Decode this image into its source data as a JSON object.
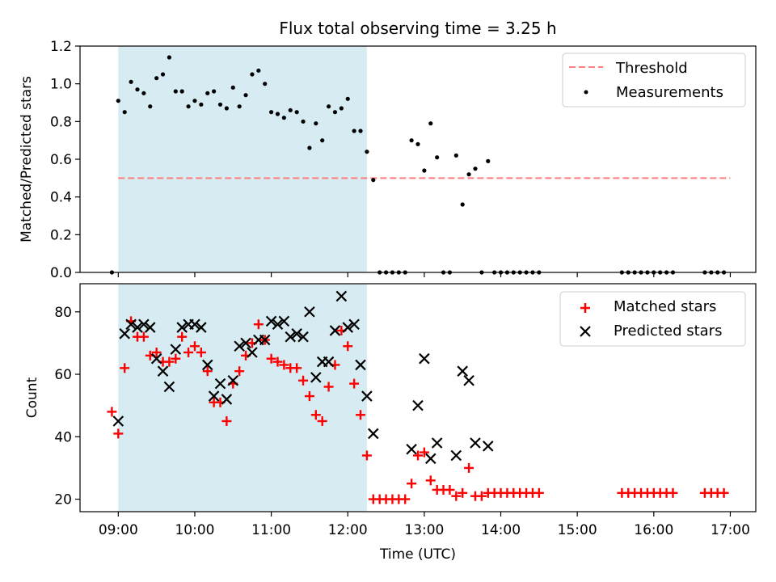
{
  "figure": {
    "title": "Flux total observing time = 3.25 h"
  },
  "colors": {
    "span_fill": "#add8e6",
    "threshold": "#ff7f7f",
    "measurements": "#000000",
    "matched": "#ff0000",
    "predicted": "#000000",
    "axes": "#000000"
  },
  "chart_data": [
    {
      "type": "scatter",
      "panel": "top",
      "title": "Flux total observing time = 3.25 h",
      "xlabel": "",
      "ylabel": "Matched/Predicted stars",
      "xlim": [
        "08:30",
        "17:20"
      ],
      "ylim": [
        0,
        1.2
      ],
      "yticks": [
        "0.0",
        "0.2",
        "0.4",
        "0.6",
        "0.8",
        "1.0",
        "1.2"
      ],
      "x_tick_values": [
        "09:00",
        "10:00",
        "11:00",
        "12:00",
        "13:00",
        "14:00",
        "15:00",
        "16:00",
        "17:00"
      ],
      "shaded_span": [
        "09:00",
        "12:15"
      ],
      "legend": {
        "position": "top-right",
        "entries": [
          "Threshold",
          "Measurements"
        ]
      },
      "grid": false,
      "threshold": {
        "name": "Threshold",
        "value": 0.5,
        "x_range": [
          "09:00",
          "17:00"
        ],
        "style": "dashed"
      },
      "series": [
        {
          "name": "Measurements",
          "marker": "dot",
          "points": [
            [
              "08:55",
              0.0
            ],
            [
              "09:00",
              0.91
            ],
            [
              "09:05",
              0.85
            ],
            [
              "09:10",
              1.01
            ],
            [
              "09:15",
              0.97
            ],
            [
              "09:20",
              0.95
            ],
            [
              "09:25",
              0.88
            ],
            [
              "09:30",
              1.03
            ],
            [
              "09:35",
              1.05
            ],
            [
              "09:40",
              1.14
            ],
            [
              "09:45",
              0.96
            ],
            [
              "09:50",
              0.96
            ],
            [
              "09:55",
              0.88
            ],
            [
              "10:00",
              0.91
            ],
            [
              "10:05",
              0.89
            ],
            [
              "10:10",
              0.95
            ],
            [
              "10:15",
              0.96
            ],
            [
              "10:20",
              0.89
            ],
            [
              "10:25",
              0.87
            ],
            [
              "10:30",
              0.98
            ],
            [
              "10:35",
              0.88
            ],
            [
              "10:40",
              0.94
            ],
            [
              "10:45",
              1.05
            ],
            [
              "10:50",
              1.07
            ],
            [
              "10:55",
              1.0
            ],
            [
              "11:00",
              0.85
            ],
            [
              "11:05",
              0.84
            ],
            [
              "11:10",
              0.82
            ],
            [
              "11:15",
              0.86
            ],
            [
              "11:20",
              0.85
            ],
            [
              "11:25",
              0.8
            ],
            [
              "11:30",
              0.66
            ],
            [
              "11:35",
              0.79
            ],
            [
              "11:40",
              0.7
            ],
            [
              "11:45",
              0.88
            ],
            [
              "11:50",
              0.85
            ],
            [
              "11:55",
              0.87
            ],
            [
              "12:00",
              0.92
            ],
            [
              "12:05",
              0.75
            ],
            [
              "12:10",
              0.75
            ],
            [
              "12:15",
              0.64
            ],
            [
              "12:20",
              0.49
            ],
            [
              "12:25",
              0.0
            ],
            [
              "12:30",
              0.0
            ],
            [
              "12:35",
              0.0
            ],
            [
              "12:40",
              0.0
            ],
            [
              "12:45",
              0.0
            ],
            [
              "12:50",
              0.7
            ],
            [
              "12:55",
              0.68
            ],
            [
              "13:00",
              0.54
            ],
            [
              "13:05",
              0.79
            ],
            [
              "13:10",
              0.61
            ],
            [
              "13:15",
              0.0
            ],
            [
              "13:20",
              0.0
            ],
            [
              "13:25",
              0.62
            ],
            [
              "13:30",
              0.36
            ],
            [
              "13:35",
              0.52
            ],
            [
              "13:40",
              0.55
            ],
            [
              "13:45",
              0.0
            ],
            [
              "13:50",
              0.59
            ],
            [
              "13:55",
              0.0
            ],
            [
              "14:00",
              0.0
            ],
            [
              "14:05",
              0.0
            ],
            [
              "14:10",
              0.0
            ],
            [
              "14:15",
              0.0
            ],
            [
              "14:20",
              0.0
            ],
            [
              "14:25",
              0.0
            ],
            [
              "14:30",
              0.0
            ],
            [
              "15:35",
              0.0
            ],
            [
              "15:40",
              0.0
            ],
            [
              "15:45",
              0.0
            ],
            [
              "15:50",
              0.0
            ],
            [
              "15:55",
              0.0
            ],
            [
              "16:00",
              0.0
            ],
            [
              "16:05",
              0.0
            ],
            [
              "16:10",
              0.0
            ],
            [
              "16:15",
              0.0
            ],
            [
              "16:40",
              0.0
            ],
            [
              "16:45",
              0.0
            ],
            [
              "16:50",
              0.0
            ],
            [
              "16:55",
              0.0
            ]
          ]
        }
      ]
    },
    {
      "type": "scatter",
      "panel": "bottom",
      "title": "",
      "xlabel": "Time (UTC)",
      "ylabel": "Count",
      "xlim": [
        "08:30",
        "17:20"
      ],
      "ylim": [
        16,
        89
      ],
      "yticks": [
        "20",
        "40",
        "60",
        "80"
      ],
      "xticks": [
        "09:00",
        "10:00",
        "11:00",
        "12:00",
        "13:00",
        "14:00",
        "15:00",
        "16:00",
        "17:00"
      ],
      "shaded_span": [
        "09:00",
        "12:15"
      ],
      "legend": {
        "position": "top-right",
        "entries": [
          "Matched stars",
          "Predicted stars"
        ]
      },
      "grid": false,
      "series": [
        {
          "name": "Matched stars",
          "marker": "plus",
          "points": [
            [
              "08:55",
              48
            ],
            [
              "09:00",
              41
            ],
            [
              "09:05",
              62
            ],
            [
              "09:10",
              77
            ],
            [
              "09:15",
              72
            ],
            [
              "09:20",
              72
            ],
            [
              "09:25",
              66
            ],
            [
              "09:30",
              67
            ],
            [
              "09:35",
              64
            ],
            [
              "09:40",
              64
            ],
            [
              "09:45",
              65
            ],
            [
              "09:50",
              72
            ],
            [
              "09:55",
              67
            ],
            [
              "10:00",
              69
            ],
            [
              "10:05",
              67
            ],
            [
              "10:10",
              61
            ],
            [
              "10:15",
              51
            ],
            [
              "10:20",
              51
            ],
            [
              "10:25",
              45
            ],
            [
              "10:30",
              57
            ],
            [
              "10:35",
              61
            ],
            [
              "10:40",
              66
            ],
            [
              "10:45",
              70
            ],
            [
              "10:50",
              76
            ],
            [
              "10:55",
              71
            ],
            [
              "11:00",
              65
            ],
            [
              "11:05",
              64
            ],
            [
              "11:10",
              63
            ],
            [
              "11:15",
              62
            ],
            [
              "11:20",
              62
            ],
            [
              "11:25",
              58
            ],
            [
              "11:30",
              53
            ],
            [
              "11:35",
              47
            ],
            [
              "11:40",
              45
            ],
            [
              "11:45",
              56
            ],
            [
              "11:50",
              63
            ],
            [
              "11:55",
              74
            ],
            [
              "12:00",
              69
            ],
            [
              "12:05",
              57
            ],
            [
              "12:10",
              47
            ],
            [
              "12:15",
              34
            ],
            [
              "12:20",
              20
            ],
            [
              "12:25",
              20
            ],
            [
              "12:30",
              20
            ],
            [
              "12:35",
              20
            ],
            [
              "12:40",
              20
            ],
            [
              "12:45",
              20
            ],
            [
              "12:50",
              25
            ],
            [
              "12:55",
              34
            ],
            [
              "13:00",
              35
            ],
            [
              "13:05",
              26
            ],
            [
              "13:10",
              23
            ],
            [
              "13:15",
              23
            ],
            [
              "13:20",
              23
            ],
            [
              "13:25",
              21
            ],
            [
              "13:30",
              22
            ],
            [
              "13:35",
              30
            ],
            [
              "13:40",
              21
            ],
            [
              "13:45",
              21
            ],
            [
              "13:50",
              22
            ],
            [
              "13:55",
              22
            ],
            [
              "14:00",
              22
            ],
            [
              "14:05",
              22
            ],
            [
              "14:10",
              22
            ],
            [
              "14:15",
              22
            ],
            [
              "14:20",
              22
            ],
            [
              "14:25",
              22
            ],
            [
              "14:30",
              22
            ],
            [
              "15:35",
              22
            ],
            [
              "15:40",
              22
            ],
            [
              "15:45",
              22
            ],
            [
              "15:50",
              22
            ],
            [
              "15:55",
              22
            ],
            [
              "16:00",
              22
            ],
            [
              "16:05",
              22
            ],
            [
              "16:10",
              22
            ],
            [
              "16:15",
              22
            ],
            [
              "16:40",
              22
            ],
            [
              "16:45",
              22
            ],
            [
              "16:50",
              22
            ],
            [
              "16:55",
              22
            ]
          ]
        },
        {
          "name": "Predicted stars",
          "marker": "x",
          "points": [
            [
              "09:00",
              45
            ],
            [
              "09:05",
              73
            ],
            [
              "09:10",
              76
            ],
            [
              "09:15",
              75
            ],
            [
              "09:20",
              76
            ],
            [
              "09:25",
              75
            ],
            [
              "09:30",
              65
            ],
            [
              "09:35",
              61
            ],
            [
              "09:40",
              56
            ],
            [
              "09:45",
              68
            ],
            [
              "09:50",
              75
            ],
            [
              "09:55",
              76
            ],
            [
              "10:00",
              76
            ],
            [
              "10:05",
              75
            ],
            [
              "10:10",
              63
            ],
            [
              "10:15",
              53
            ],
            [
              "10:20",
              57
            ],
            [
              "10:25",
              52
            ],
            [
              "10:30",
              58
            ],
            [
              "10:35",
              69
            ],
            [
              "10:40",
              70
            ],
            [
              "10:45",
              67
            ],
            [
              "10:50",
              71
            ],
            [
              "10:55",
              71
            ],
            [
              "11:00",
              77
            ],
            [
              "11:05",
              76
            ],
            [
              "11:10",
              77
            ],
            [
              "11:15",
              72
            ],
            [
              "11:20",
              73
            ],
            [
              "11:25",
              72
            ],
            [
              "11:30",
              80
            ],
            [
              "11:35",
              59
            ],
            [
              "11:40",
              64
            ],
            [
              "11:45",
              64
            ],
            [
              "11:50",
              74
            ],
            [
              "11:55",
              85
            ],
            [
              "12:00",
              75
            ],
            [
              "12:05",
              76
            ],
            [
              "12:10",
              63
            ],
            [
              "12:15",
              53
            ],
            [
              "12:20",
              41
            ],
            [
              "12:50",
              36
            ],
            [
              "12:55",
              50
            ],
            [
              "13:00",
              65
            ],
            [
              "13:05",
              33
            ],
            [
              "13:10",
              38
            ],
            [
              "13:25",
              34
            ],
            [
              "13:30",
              61
            ],
            [
              "13:35",
              58
            ],
            [
              "13:40",
              38
            ],
            [
              "13:50",
              37
            ]
          ]
        }
      ]
    }
  ]
}
